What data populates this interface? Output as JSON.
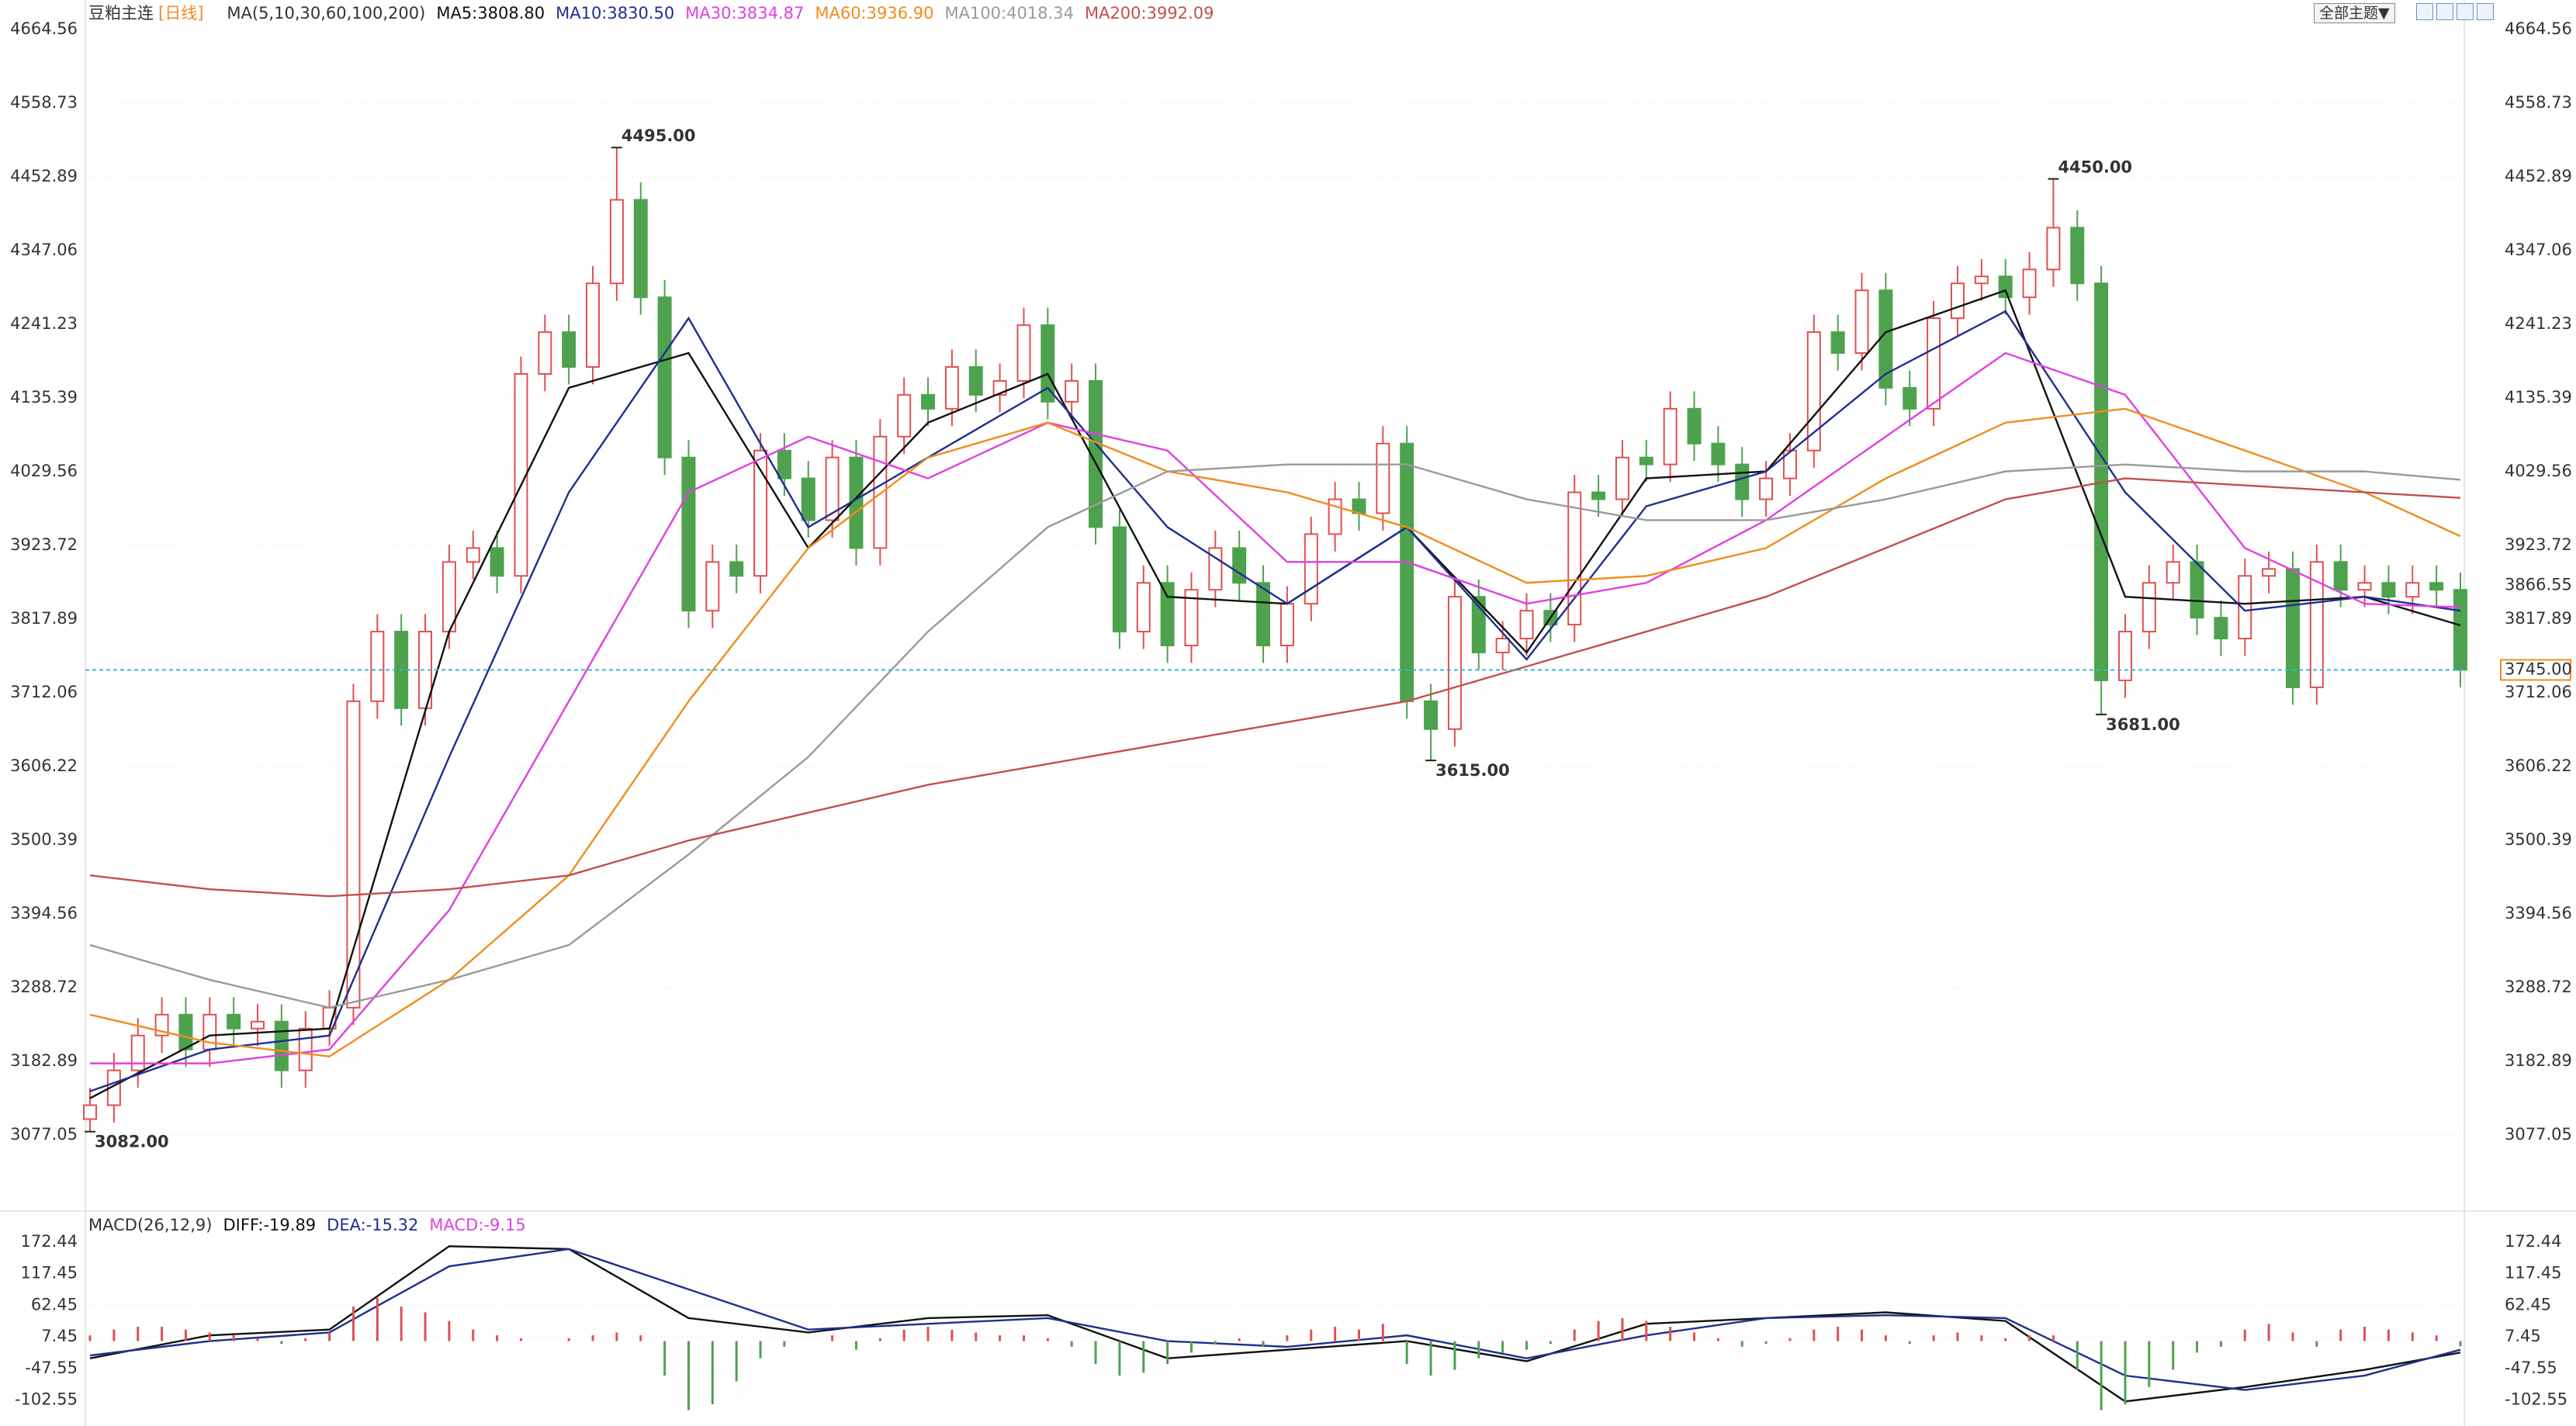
{
  "toolbar": {
    "theme_button": "全部主题▼"
  },
  "chart_data": [
    {
      "type": "candlestick",
      "title": "豆粕主连",
      "period": "[日线]",
      "indicator": "MA(5,10,30,60,100,200)",
      "up_color": "#e05050",
      "down_color": "#4ea24e",
      "grid": true,
      "ylim": [
        2973.5,
        4706.9
      ],
      "yticks": [
        4664.56,
        4558.73,
        4452.89,
        4347.06,
        4241.23,
        4135.39,
        4029.56,
        3923.72,
        3817.89,
        3712.06,
        3606.22,
        3500.39,
        3394.56,
        3288.72,
        3182.89,
        3077.05
      ],
      "xlim": [
        0,
        99
      ],
      "x": [
        0,
        1,
        2,
        3,
        4,
        5,
        6,
        7,
        8,
        9,
        10,
        11,
        12,
        13,
        14,
        15,
        16,
        17,
        18,
        19,
        20,
        21,
        22,
        23,
        24,
        25,
        26,
        27,
        28,
        29,
        30,
        31,
        32,
        33,
        34,
        35,
        36,
        37,
        38,
        39,
        40,
        41,
        42,
        43,
        44,
        45,
        46,
        47,
        48,
        49,
        50,
        51,
        52,
        53,
        54,
        55,
        56,
        57,
        58,
        59,
        60,
        61,
        62,
        63,
        64,
        65,
        66,
        67,
        68,
        69,
        70,
        71,
        72,
        73,
        74,
        75,
        76,
        77,
        78,
        79,
        80,
        81,
        82,
        83,
        84,
        85,
        86,
        87,
        88,
        89,
        90,
        91,
        92,
        93,
        94,
        95,
        96,
        97,
        98,
        99
      ],
      "open": [
        3100,
        3120,
        3170,
        3220,
        3250,
        3200,
        3250,
        3230,
        3240,
        3170,
        3230,
        3260,
        3700,
        3800,
        3690,
        3800,
        3900,
        3920,
        3880,
        4170,
        4230,
        4180,
        4300,
        4420,
        4280,
        4050,
        3830,
        3900,
        3880,
        4060,
        4020,
        3960,
        4050,
        3920,
        4080,
        4140,
        4120,
        4180,
        4140,
        4160,
        4240,
        4130,
        4160,
        3950,
        3800,
        3870,
        3780,
        3860,
        3920,
        3870,
        3780,
        3840,
        3940,
        3990,
        3970,
        4070,
        3700,
        3660,
        3850,
        3770,
        3790,
        3830,
        3810,
        4000,
        3990,
        4050,
        4040,
        4120,
        4070,
        4040,
        3990,
        4020,
        4060,
        4230,
        4200,
        4290,
        4150,
        4120,
        4250,
        4300,
        4310,
        4280,
        4320,
        4380,
        4300,
        3730,
        3800,
        3870,
        3900,
        3820,
        3790,
        3880,
        3890,
        3720,
        3900,
        3860,
        3870,
        3850,
        3870,
        3860
      ],
      "high": [
        3145,
        3195,
        3245,
        3275,
        3275,
        3275,
        3275,
        3265,
        3265,
        3255,
        3285,
        3725,
        3825,
        3825,
        3825,
        3925,
        3945,
        3945,
        4195,
        4255,
        4255,
        4325,
        4495,
        4445,
        4305,
        4075,
        3925,
        3925,
        4085,
        4085,
        4045,
        4075,
        4075,
        4105,
        4165,
        4165,
        4205,
        4205,
        4185,
        4265,
        4265,
        4185,
        4185,
        3975,
        3895,
        3895,
        3885,
        3945,
        3945,
        3895,
        3865,
        3965,
        4015,
        4015,
        4095,
        4095,
        3725,
        3875,
        3875,
        3815,
        3855,
        3855,
        4025,
        4025,
        4075,
        4075,
        4145,
        4145,
        4095,
        4065,
        4045,
        4085,
        4255,
        4255,
        4315,
        4315,
        4175,
        4275,
        4325,
        4335,
        4335,
        4345,
        4450,
        4405,
        4325,
        3825,
        3895,
        3925,
        3925,
        3845,
        3905,
        3915,
        3915,
        3925,
        3925,
        3895,
        3895,
        3895,
        3895,
        3885
      ],
      "low": [
        3082,
        3095,
        3145,
        3195,
        3175,
        3175,
        3205,
        3205,
        3145,
        3145,
        3205,
        3235,
        3675,
        3665,
        3665,
        3775,
        3875,
        3855,
        3855,
        4145,
        4155,
        4155,
        4275,
        4255,
        4025,
        3805,
        3805,
        3855,
        3855,
        3995,
        3935,
        3935,
        3895,
        3895,
        4055,
        4095,
        4095,
        4115,
        4115,
        4135,
        4105,
        4105,
        3925,
        3775,
        3775,
        3755,
        3755,
        3835,
        3845,
        3755,
        3755,
        3815,
        3915,
        3945,
        3945,
        3675,
        3615,
        3635,
        3745,
        3745,
        3765,
        3785,
        3785,
        3965,
        3965,
        4015,
        4015,
        4045,
        4015,
        3965,
        3965,
        3995,
        4035,
        4175,
        4175,
        4125,
        4095,
        4095,
        4225,
        4275,
        4255,
        4255,
        4295,
        4275,
        3681,
        3705,
        3775,
        3845,
        3795,
        3765,
        3765,
        3855,
        3695,
        3695,
        3835,
        3835,
        3825,
        3825,
        3835,
        3720
      ],
      "close": [
        3120,
        3170,
        3220,
        3250,
        3200,
        3250,
        3230,
        3240,
        3170,
        3230,
        3260,
        3700,
        3800,
        3690,
        3800,
        3900,
        3920,
        3880,
        4170,
        4230,
        4180,
        4300,
        4420,
        4280,
        4050,
        3830,
        3900,
        3880,
        4060,
        4020,
        3960,
        4050,
        3920,
        4080,
        4140,
        4120,
        4180,
        4140,
        4160,
        4240,
        4130,
        4160,
        3950,
        3800,
        3870,
        3780,
        3860,
        3920,
        3870,
        3780,
        3840,
        3940,
        3990,
        3970,
        4070,
        3700,
        3660,
        3850,
        3770,
        3790,
        3830,
        3810,
        4000,
        3990,
        4050,
        4040,
        4120,
        4070,
        4040,
        3990,
        4020,
        4060,
        4230,
        4200,
        4290,
        4150,
        4120,
        4250,
        4300,
        4310,
        4280,
        4320,
        4380,
        4300,
        3730,
        3800,
        3870,
        3900,
        3820,
        3790,
        3880,
        3890,
        3720,
        3900,
        3860,
        3870,
        3850,
        3870,
        3860,
        3745
      ],
      "series": [
        {
          "name": "MA5:3808.80",
          "color": "#111111",
          "x": [
            0,
            5,
            10,
            15,
            20,
            25,
            30,
            35,
            40,
            45,
            50,
            55,
            60,
            65,
            70,
            75,
            80,
            85,
            90,
            95,
            99
          ],
          "values": [
            3130,
            3220,
            3230,
            3800,
            4150,
            4200,
            3920,
            4100,
            4170,
            3850,
            3840,
            3950,
            3770,
            4020,
            4030,
            4230,
            4290,
            3850,
            3840,
            3850,
            3809
          ]
        },
        {
          "name": "MA10:3830.50",
          "color": "#1f2f8f",
          "x": [
            0,
            5,
            10,
            15,
            20,
            25,
            30,
            35,
            40,
            45,
            50,
            55,
            60,
            65,
            70,
            75,
            80,
            85,
            90,
            95,
            99
          ],
          "values": [
            3140,
            3200,
            3220,
            3620,
            4000,
            4250,
            3950,
            4050,
            4150,
            3950,
            3840,
            3950,
            3760,
            3980,
            4030,
            4170,
            4260,
            4000,
            3830,
            3850,
            3830
          ]
        },
        {
          "name": "MA30:3834.87",
          "color": "#e040e0",
          "x": [
            0,
            5,
            10,
            15,
            20,
            25,
            30,
            35,
            40,
            45,
            50,
            55,
            60,
            65,
            70,
            75,
            80,
            85,
            90,
            95,
            99
          ],
          "values": [
            3180,
            3180,
            3200,
            3400,
            3700,
            4000,
            4080,
            4020,
            4100,
            4060,
            3900,
            3900,
            3840,
            3870,
            3960,
            4080,
            4200,
            4140,
            3920,
            3840,
            3835
          ]
        },
        {
          "name": "MA60:3936.90",
          "color": "#f08c1e",
          "x": [
            0,
            5,
            10,
            15,
            20,
            25,
            30,
            35,
            40,
            45,
            50,
            55,
            60,
            65,
            70,
            75,
            80,
            85,
            90,
            95,
            99
          ],
          "values": [
            3250,
            3210,
            3190,
            3300,
            3450,
            3700,
            3920,
            4050,
            4100,
            4030,
            4000,
            3950,
            3870,
            3880,
            3920,
            4020,
            4100,
            4120,
            4060,
            4000,
            3937
          ]
        },
        {
          "name": "MA100:4018.34",
          "color": "#9a9a9a",
          "x": [
            0,
            5,
            10,
            15,
            20,
            25,
            30,
            35,
            40,
            45,
            50,
            55,
            60,
            65,
            70,
            75,
            80,
            85,
            90,
            95,
            99
          ],
          "values": [
            3350,
            3300,
            3260,
            3300,
            3350,
            3480,
            3620,
            3800,
            3950,
            4030,
            4040,
            4040,
            3990,
            3960,
            3960,
            3990,
            4030,
            4040,
            4030,
            4030,
            4018
          ]
        },
        {
          "name": "MA200:3992.09",
          "color": "#c0504d",
          "x": [
            0,
            5,
            10,
            15,
            20,
            25,
            30,
            35,
            40,
            45,
            50,
            55,
            60,
            65,
            70,
            75,
            80,
            85,
            90,
            95,
            99
          ],
          "values": [
            3450,
            3430,
            3420,
            3430,
            3450,
            3500,
            3540,
            3580,
            3610,
            3640,
            3670,
            3700,
            3750,
            3800,
            3850,
            3920,
            3990,
            4020,
            4010,
            4000,
            3992
          ]
        }
      ],
      "annotations": [
        {
          "text": "4495.00",
          "x": 22,
          "y": 4495
        },
        {
          "text": "4450.00",
          "x": 82,
          "y": 4450
        },
        {
          "text": "3615.00",
          "x": 56,
          "y": 3615
        },
        {
          "text": "3681.00",
          "x": 84,
          "y": 3681
        },
        {
          "text": "3082.00",
          "x": 0,
          "y": 3082
        }
      ],
      "last_price": {
        "value": 3745,
        "label": "3745.00",
        "color": "#3cb4c8"
      },
      "price_marker": {
        "value": 3866.55,
        "label": "3866.55",
        "color": "#f08c1e"
      }
    },
    {
      "type": "macd",
      "title": "MACD(26,12,9)",
      "up_color": "#e05050",
      "down_color": "#4ea24e",
      "grid": true,
      "ylim": [
        -145,
        218
      ],
      "yticks": [
        172.44,
        117.45,
        62.45,
        7.45,
        -47.55,
        -102.55
      ],
      "xlim": [
        0,
        99
      ],
      "series": [
        {
          "name": "DIFF:-19.89",
          "color": "#111111",
          "x": [
            0,
            5,
            10,
            15,
            20,
            25,
            30,
            35,
            40,
            45,
            50,
            55,
            60,
            65,
            70,
            75,
            80,
            85,
            90,
            95,
            99
          ],
          "values": [
            -30,
            10,
            20,
            165,
            160,
            40,
            15,
            40,
            45,
            -30,
            -15,
            0,
            -35,
            30,
            40,
            50,
            35,
            -105,
            -80,
            -50,
            -20
          ]
        },
        {
          "name": "DEA:-15.32",
          "color": "#1f2f8f",
          "x": [
            0,
            5,
            10,
            15,
            20,
            25,
            30,
            35,
            40,
            45,
            50,
            55,
            60,
            65,
            70,
            75,
            80,
            85,
            90,
            95,
            99
          ],
          "values": [
            -25,
            0,
            15,
            130,
            160,
            90,
            20,
            30,
            40,
            0,
            -10,
            10,
            -30,
            10,
            40,
            45,
            40,
            -60,
            -85,
            -60,
            -15
          ]
        },
        {
          "name": "MACD:-9.15",
          "color": "#e040e0",
          "type": "bar",
          "values": [
            10,
            20,
            25,
            25,
            20,
            15,
            10,
            5,
            -5,
            5,
            15,
            60,
            75,
            60,
            50,
            35,
            20,
            10,
            5,
            0,
            5,
            10,
            15,
            10,
            -60,
            -120,
            -110,
            -70,
            -30,
            -10,
            0,
            10,
            -15,
            5,
            20,
            25,
            20,
            15,
            10,
            10,
            5,
            -10,
            -40,
            -60,
            -55,
            -40,
            -20,
            -5,
            5,
            -10,
            10,
            20,
            25,
            20,
            30,
            -40,
            -60,
            -50,
            -30,
            -20,
            -15,
            -5,
            20,
            35,
            40,
            35,
            25,
            15,
            5,
            -10,
            -5,
            5,
            20,
            25,
            20,
            10,
            -5,
            10,
            15,
            10,
            5,
            10,
            10,
            -50,
            -120,
            -110,
            -80,
            -50,
            -20,
            -10,
            20,
            30,
            15,
            -10,
            20,
            25,
            20,
            15,
            10,
            -9.15
          ]
        }
      ]
    }
  ]
}
